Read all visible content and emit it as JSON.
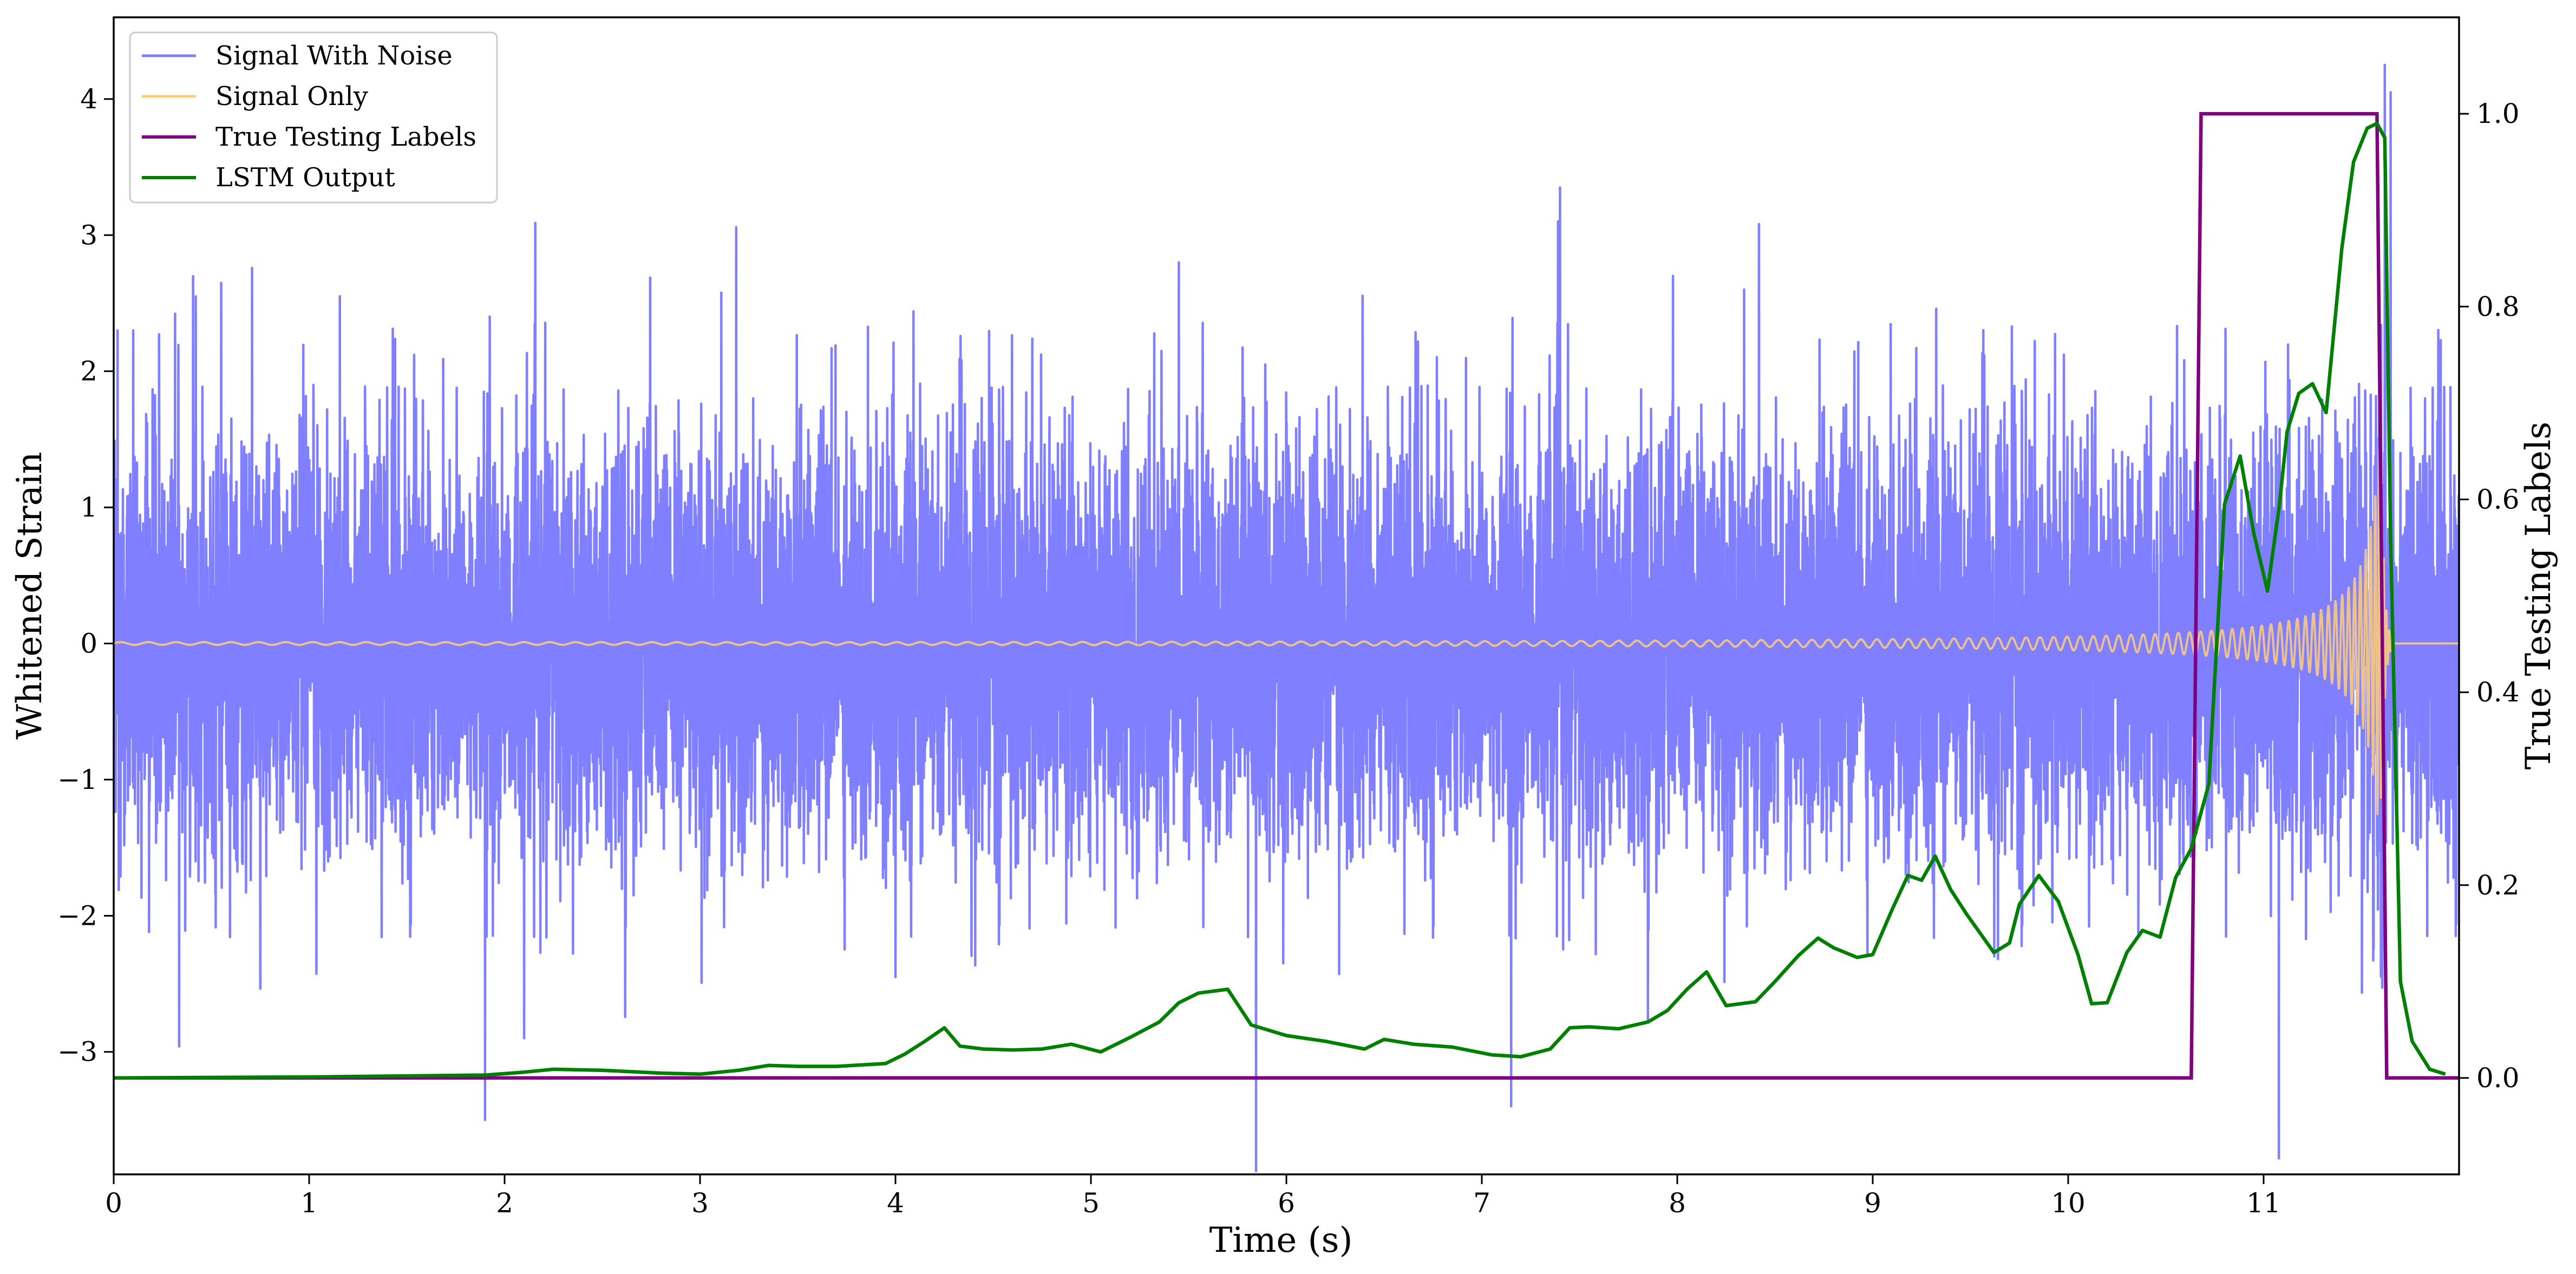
{
  "chart_data": {
    "type": "line",
    "xlabel": "Time (s)",
    "ylabel": "Whitened Strain",
    "ylabel_right": "True Testing Labels",
    "xlim": [
      0,
      12
    ],
    "ylim": [
      -3.9,
      4.6
    ],
    "ylim_right": [
      -0.1,
      1.1
    ],
    "xticks": [
      0,
      1,
      2,
      3,
      4,
      5,
      6,
      7,
      8,
      9,
      10,
      11
    ],
    "xtick_labels": [
      "0",
      "1",
      "2",
      "3",
      "4",
      "5",
      "6",
      "7",
      "8",
      "9",
      "10",
      "11"
    ],
    "yticks": [
      -3,
      -2,
      -1,
      0,
      1,
      2,
      3,
      4
    ],
    "ytick_labels": [
      "−3",
      "−2",
      "−1",
      "0",
      "1",
      "2",
      "3",
      "4"
    ],
    "yticks_right": [
      0.0,
      0.2,
      0.4,
      0.6,
      0.8,
      1.0
    ],
    "ytick_labels_right": [
      "0.0",
      "0.2",
      "0.4",
      "0.6",
      "0.8",
      "1.0"
    ],
    "grid": false,
    "legend_position": "top-left",
    "series": [
      {
        "name": "Signal With Noise",
        "axis": "left",
        "color": "#7f7fff",
        "description_values": {
          "baseline_amplitude": 0.75,
          "spikes": [
            [
              0.02,
              2.3
            ],
            [
              0.1,
              2.3
            ],
            [
              0.42,
              2.55
            ],
            [
              0.55,
              2.65
            ],
            [
              1.9,
              -3.5
            ],
            [
              2.1,
              -2.9
            ],
            [
              4.0,
              -2.45
            ],
            [
              5.45,
              2.8
            ],
            [
              7.15,
              -3.4
            ],
            [
              7.4,
              3.35
            ],
            [
              11.62,
              4.25
            ],
            [
              11.65,
              4.05
            ]
          ]
        }
      },
      {
        "name": "Signal Only",
        "axis": "left",
        "color": "#ffcc77",
        "chirp": {
          "t_start": 0,
          "t_merge": 11.6,
          "amp_start": 0.01,
          "amp_peak": 1.65,
          "freq_start": 7,
          "freq_peak": 70,
          "ringdown_end": 11.66
        }
      },
      {
        "name": "True Testing Labels",
        "axis": "right",
        "color": "#800080",
        "x": [
          0,
          10.63,
          10.68,
          11.58,
          11.63,
          12.0
        ],
        "y": [
          0,
          0,
          1,
          1,
          0,
          0
        ]
      },
      {
        "name": "LSTM Output",
        "axis": "right",
        "color": "#008000",
        "x": [
          0,
          1,
          1.9,
          2.1,
          2.25,
          2.5,
          2.8,
          3.0,
          3.2,
          3.35,
          3.5,
          3.7,
          3.95,
          4.05,
          4.15,
          4.25,
          4.33,
          4.45,
          4.6,
          4.75,
          4.9,
          5.05,
          5.2,
          5.35,
          5.45,
          5.55,
          5.7,
          5.82,
          6.0,
          6.2,
          6.4,
          6.5,
          6.65,
          6.85,
          7.05,
          7.2,
          7.35,
          7.45,
          7.55,
          7.7,
          7.85,
          7.95,
          8.05,
          8.15,
          8.25,
          8.4,
          8.5,
          8.62,
          8.72,
          8.8,
          8.92,
          9.0,
          9.1,
          9.18,
          9.25,
          9.32,
          9.4,
          9.48,
          9.55,
          9.62,
          9.7,
          9.75,
          9.85,
          9.95,
          10.05,
          10.12,
          10.2,
          10.3,
          10.38,
          10.47,
          10.55,
          10.63,
          10.72,
          10.8,
          10.88,
          10.95,
          11.02,
          11.08,
          11.12,
          11.18,
          11.25,
          11.32,
          11.4,
          11.46,
          11.53,
          11.58,
          11.62,
          11.65,
          11.7,
          11.76,
          11.85,
          11.93
        ],
        "y": [
          0,
          0.001,
          0.003,
          0.006,
          0.009,
          0.008,
          0.005,
          0.004,
          0.008,
          0.013,
          0.012,
          0.012,
          0.015,
          0.025,
          0.038,
          0.052,
          0.033,
          0.03,
          0.029,
          0.03,
          0.035,
          0.027,
          0.042,
          0.058,
          0.078,
          0.088,
          0.092,
          0.055,
          0.044,
          0.038,
          0.03,
          0.04,
          0.035,
          0.032,
          0.024,
          0.022,
          0.03,
          0.052,
          0.053,
          0.051,
          0.058,
          0.07,
          0.092,
          0.11,
          0.075,
          0.079,
          0.1,
          0.127,
          0.145,
          0.135,
          0.125,
          0.128,
          0.175,
          0.21,
          0.205,
          0.23,
          0.195,
          0.17,
          0.15,
          0.13,
          0.14,
          0.18,
          0.21,
          0.183,
          0.128,
          0.077,
          0.078,
          0.13,
          0.153,
          0.146,
          0.208,
          0.238,
          0.305,
          0.595,
          0.645,
          0.565,
          0.505,
          0.593,
          0.67,
          0.71,
          0.72,
          0.69,
          0.86,
          0.95,
          0.985,
          0.99,
          0.975,
          0.56,
          0.1,
          0.038,
          0.009,
          0.004
        ]
      }
    ]
  }
}
